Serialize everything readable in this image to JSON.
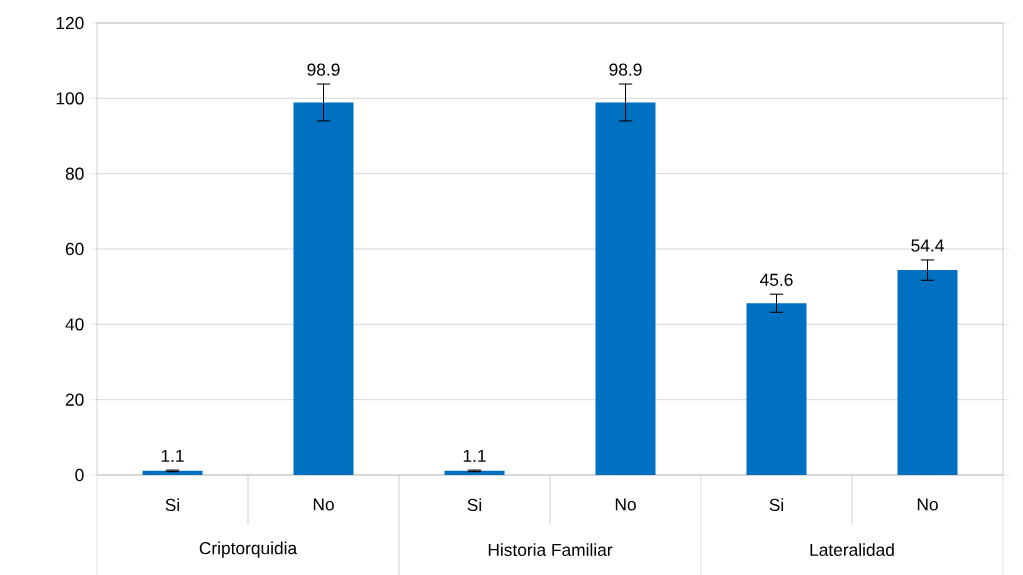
{
  "chart_data": {
    "type": "bar",
    "categories": [
      "Si",
      "No",
      "Si",
      "No",
      "Si",
      "No"
    ],
    "values": [
      1.1,
      98.9,
      1.1,
      98.9,
      45.6,
      54.4
    ],
    "errors": [
      0.2,
      4.9,
      0.2,
      4.9,
      2.4,
      2.7
    ],
    "color": "#0070c0",
    "data_labels": true,
    "annotations": [
      "Criptorquidia",
      "Historia Familiar",
      "Lateralidad"
    ],
    "ylim": [
      0,
      120
    ],
    "yticks": [
      0,
      20,
      40,
      60,
      80,
      100,
      120
    ],
    "grid": "y"
  }
}
